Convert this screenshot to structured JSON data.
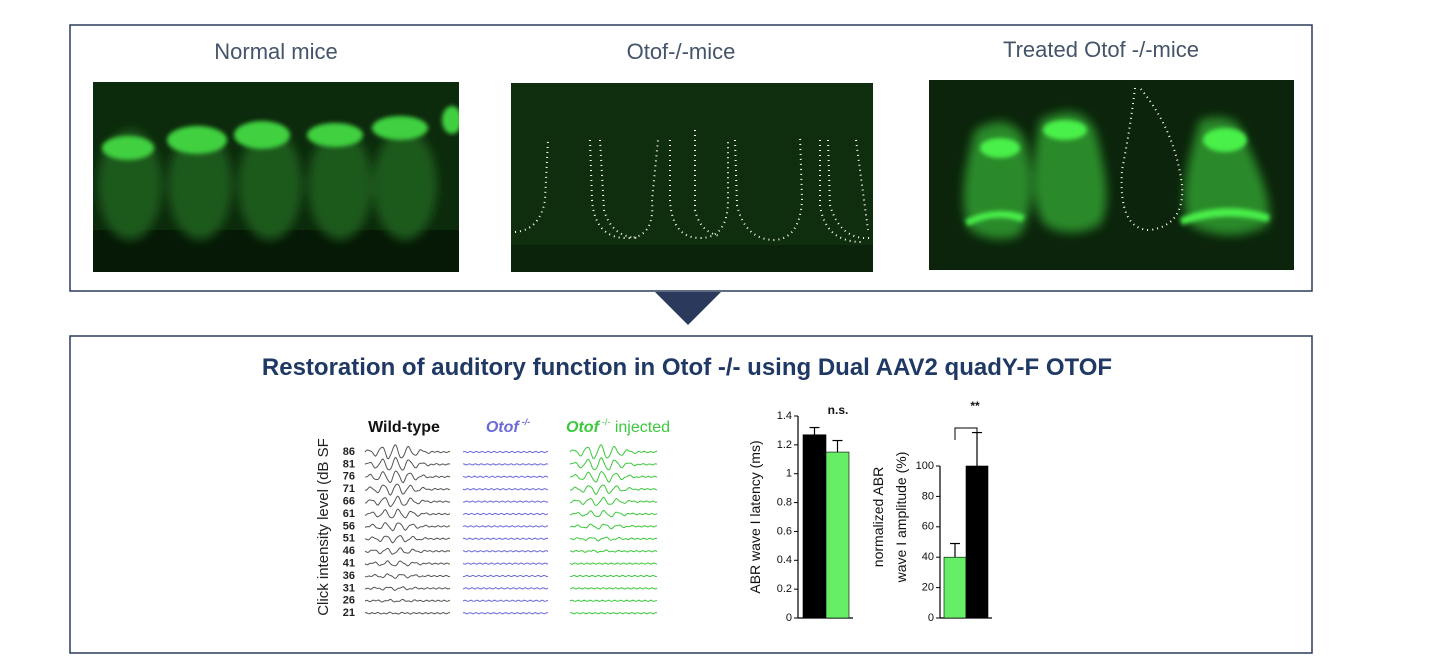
{
  "panels": [
    {
      "label": "Normal mice"
    },
    {
      "label": "Otof-/-mice"
    },
    {
      "label": "Treated Otof -/-mice"
    }
  ],
  "title": "Restoration of auditory function in Otof -/- using Dual AAV2 quadY-F OTOF",
  "abr": {
    "ylabel": "Click  intensity level (dB SF",
    "levels": [
      86,
      81,
      76,
      71,
      66,
      61,
      56,
      51,
      46,
      41,
      36,
      31,
      26,
      21
    ],
    "groups": [
      {
        "name": "Wild-type",
        "color": "#555555"
      },
      {
        "name": "Otof",
        "sup": "-/-",
        "color": "#6a6ad8"
      },
      {
        "name": "Otof",
        "sup": "-/-",
        "suffix": " injected",
        "color": "#3cc83c"
      }
    ]
  },
  "chart_data": [
    {
      "type": "bar",
      "ylabel": "ABR wave I latency (ms)",
      "values": [
        1.27,
        1.15
      ],
      "errors": [
        0.05,
        0.08
      ],
      "colors": [
        "#000000",
        "#66ee66"
      ],
      "ylim": [
        0,
        1.4
      ],
      "yticks": [
        0,
        0.2,
        0.4,
        0.6,
        0.8,
        1,
        1.2,
        1.4
      ],
      "annotation": "n.s."
    },
    {
      "type": "bar",
      "ylabel": [
        "normalized  ABR",
        "wave I amplitude (%)"
      ],
      "values": [
        40,
        100
      ],
      "errors": [
        9,
        22
      ],
      "colors": [
        "#66ee66",
        "#000000"
      ],
      "ylim": [
        0,
        120
      ],
      "yticks": [
        0,
        20,
        40,
        60,
        80,
        100
      ],
      "annotation": "**"
    }
  ]
}
